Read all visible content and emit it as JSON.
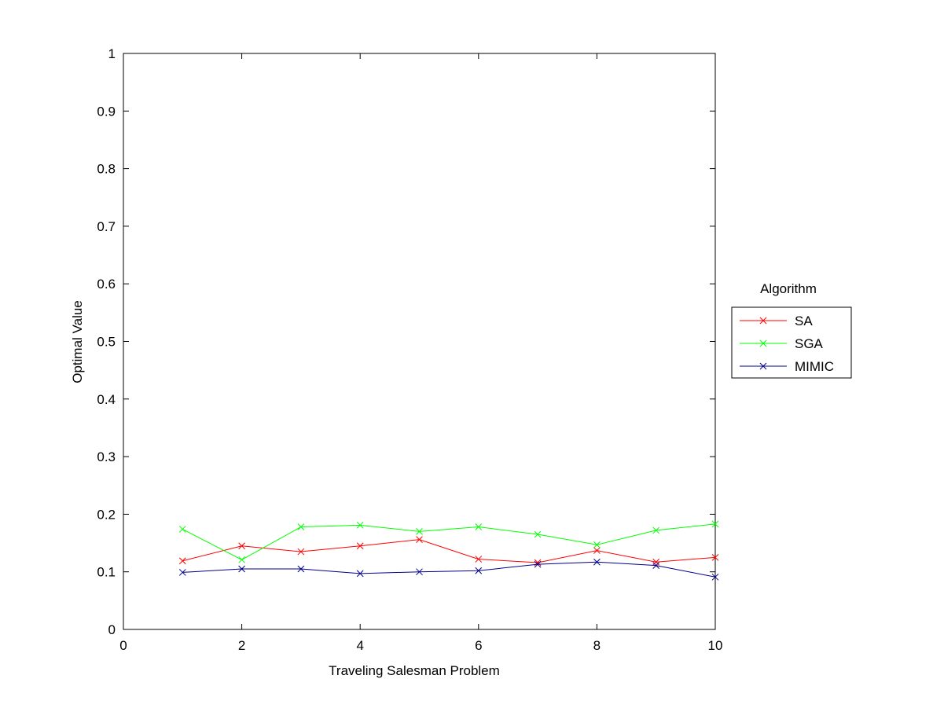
{
  "chart_data": {
    "type": "line",
    "title": "",
    "xlabel": "Traveling Salesman Problem",
    "ylabel": "Optimal Value",
    "xlim": [
      0,
      10
    ],
    "ylim": [
      0,
      1
    ],
    "xticks": [
      0,
      2,
      4,
      6,
      8,
      10
    ],
    "yticks": [
      0,
      0.1,
      0.2,
      0.3,
      0.4,
      0.5,
      0.6,
      0.7,
      0.8,
      0.9,
      1
    ],
    "grid": false,
    "legend_title": "Algorithm",
    "legend_position": "right",
    "x": [
      1,
      2,
      3,
      4,
      5,
      6,
      7,
      8,
      9,
      10
    ],
    "series": [
      {
        "name": "SA",
        "color": "#ff0000",
        "marker": "x",
        "values": [
          0.119,
          0.145,
          0.135,
          0.145,
          0.156,
          0.122,
          0.116,
          0.137,
          0.117,
          0.125
        ]
      },
      {
        "name": "SGA",
        "color": "#00ff00",
        "marker": "x",
        "values": [
          0.174,
          0.121,
          0.178,
          0.181,
          0.17,
          0.178,
          0.165,
          0.147,
          0.172,
          0.183
        ]
      },
      {
        "name": "MIMIC",
        "color": "#00008b",
        "marker": "x",
        "values": [
          0.099,
          0.105,
          0.105,
          0.097,
          0.1,
          0.102,
          0.113,
          0.117,
          0.111,
          0.091
        ]
      }
    ]
  }
}
